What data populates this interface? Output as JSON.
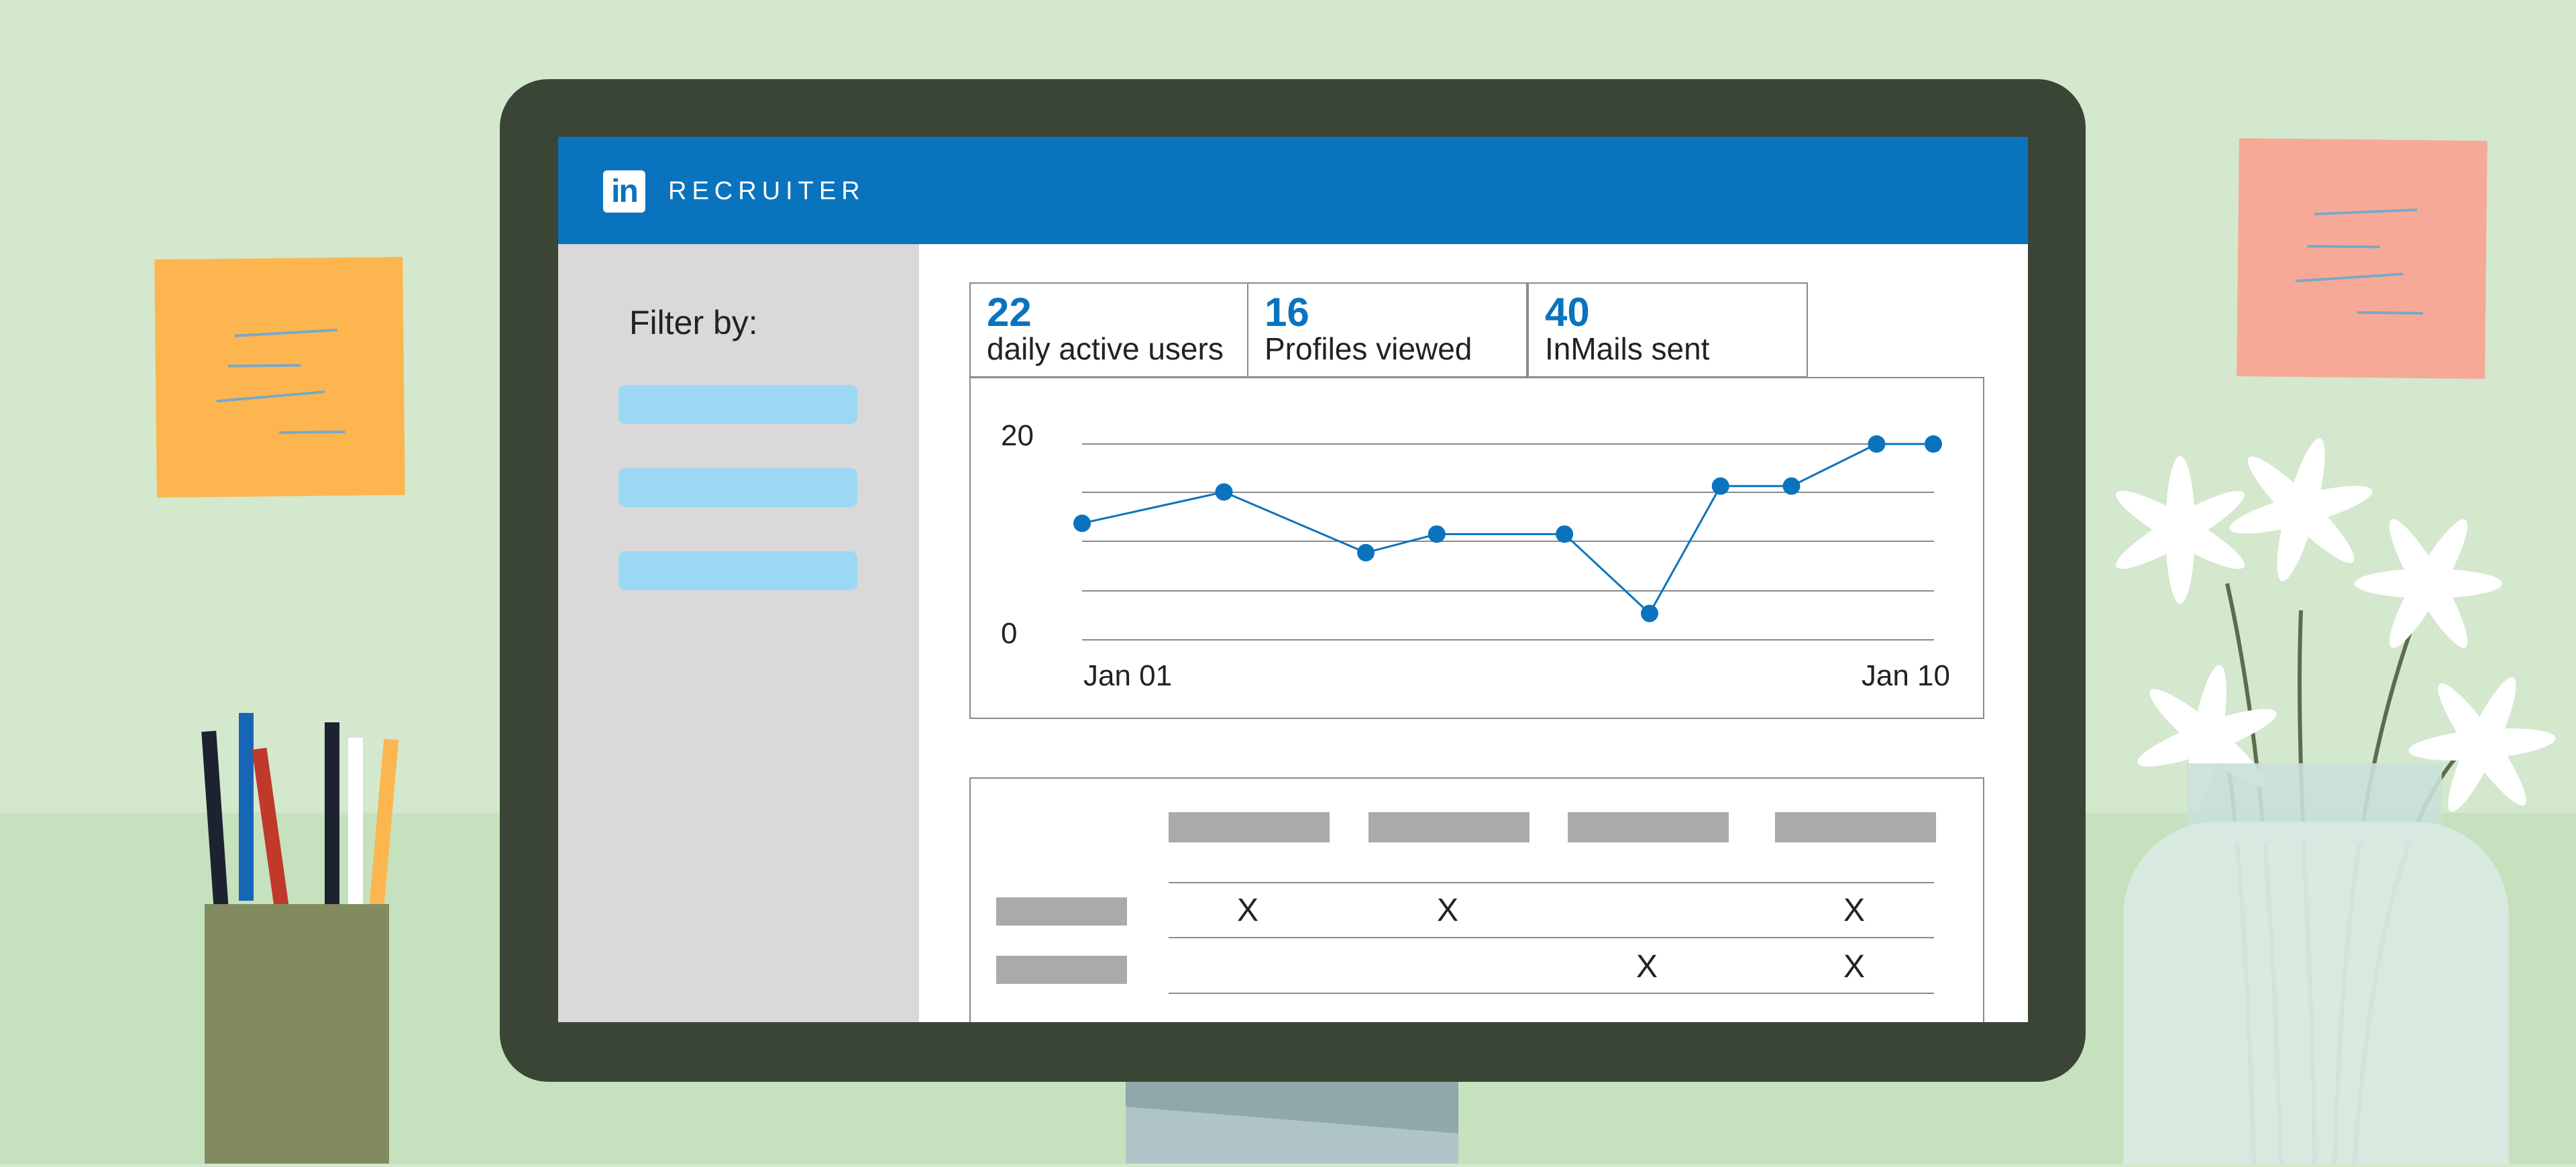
{
  "app": {
    "brand": "RECRUITER",
    "logo_text": "in"
  },
  "sidebar": {
    "filter_label": "Filter by:",
    "filters": [
      "",
      "",
      ""
    ]
  },
  "stats": [
    {
      "value": "22",
      "label": "daily active users"
    },
    {
      "value": "16",
      "label": "Profiles viewed"
    },
    {
      "value": "40",
      "label": "InMails sent"
    }
  ],
  "chart_data": {
    "type": "line",
    "x_start_label": "Jan 01",
    "x_end_label": "Jan 10",
    "y_tick_labels": [
      "0",
      "20"
    ],
    "ylim": [
      0,
      20
    ],
    "grid": true,
    "series": [
      {
        "x_index": [
          0,
          1,
          2,
          2.5,
          3.4,
          4,
          4.5,
          5,
          5.6,
          6
        ],
        "values": [
          11.9,
          15.1,
          8.9,
          10.8,
          10.8,
          2.7,
          15.7,
          15.7,
          20.0,
          20.0
        ]
      }
    ],
    "line_color": "#0a73be"
  },
  "table": {
    "columns": 4,
    "rows": [
      {
        "marks": [
          "X",
          "X",
          "",
          "X"
        ]
      },
      {
        "marks": [
          "",
          "",
          "X",
          "X"
        ]
      }
    ]
  },
  "colors": {
    "accent": "#0a73be",
    "sidebar": "#d9d9d9",
    "filter_pill": "#9cd8f4",
    "placeholder_bar": "#aaaaaa"
  }
}
